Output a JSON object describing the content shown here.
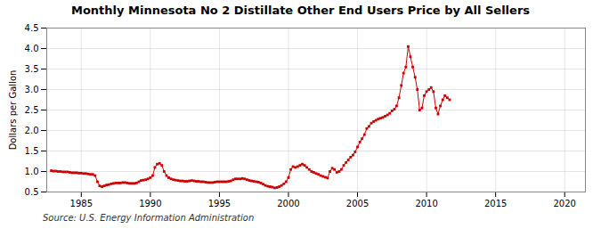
{
  "chart_data": {
    "type": "line",
    "title": "Monthly Minnesota No 2 Distillate Other End Users Price by All Sellers",
    "ylabel": "Dollars per Gallon",
    "caption": "Source: U.S. Energy Information Administration",
    "color": "#cc0000",
    "marker": "square",
    "line_style": "solid",
    "grid": true,
    "xlim": [
      1982.5,
      2021.5
    ],
    "ylim": [
      0.5,
      4.5
    ],
    "xticks": [
      1985,
      1990,
      1995,
      2000,
      2005,
      2010,
      2015,
      2020
    ],
    "yticks": [
      0.5,
      {
        "value": 1.0,
        "label": "1.0"
      },
      1.5,
      {
        "value": 2.0,
        "label": "2.0"
      },
      2.5,
      {
        "value": 3.0,
        "label": "3.0"
      },
      3.5,
      {
        "value": 4.0,
        "label": "4.0"
      },
      4.5
    ],
    "x": [
      1982.83,
      1983.0,
      1983.17,
      1983.33,
      1983.5,
      1983.67,
      1983.83,
      1984.0,
      1984.17,
      1984.33,
      1984.5,
      1984.67,
      1984.83,
      1985.0,
      1985.17,
      1985.33,
      1985.5,
      1985.67,
      1985.83,
      1986.0,
      1986.17,
      1986.33,
      1986.5,
      1986.67,
      1986.83,
      1987.0,
      1987.17,
      1987.33,
      1987.5,
      1987.67,
      1987.83,
      1988.0,
      1988.17,
      1988.33,
      1988.5,
      1988.67,
      1988.83,
      1989.0,
      1989.17,
      1989.33,
      1989.5,
      1989.67,
      1989.83,
      1990.0,
      1990.17,
      1990.33,
      1990.5,
      1990.67,
      1990.83,
      1991.0,
      1991.17,
      1991.33,
      1991.5,
      1991.67,
      1991.83,
      1992.0,
      1992.17,
      1992.33,
      1992.5,
      1992.67,
      1992.83,
      1993.0,
      1993.17,
      1993.33,
      1993.5,
      1993.67,
      1993.83,
      1994.0,
      1994.17,
      1994.33,
      1994.5,
      1994.67,
      1994.83,
      1995.0,
      1995.17,
      1995.33,
      1995.5,
      1995.67,
      1995.83,
      1996.0,
      1996.17,
      1996.33,
      1996.5,
      1996.67,
      1996.83,
      1997.0,
      1997.17,
      1997.33,
      1997.5,
      1997.67,
      1997.83,
      1998.0,
      1998.17,
      1998.33,
      1998.5,
      1998.67,
      1998.83,
      1999.0,
      1999.17,
      1999.33,
      1999.5,
      1999.67,
      1999.83,
      2000.0,
      2000.17,
      2000.33,
      2000.5,
      2000.67,
      2000.83,
      2001.0,
      2001.17,
      2001.33,
      2001.5,
      2001.67,
      2001.83,
      2002.0,
      2002.17,
      2002.33,
      2002.5,
      2002.67,
      2002.83,
      2003.0,
      2003.17,
      2003.33,
      2003.5,
      2003.67,
      2003.83,
      2004.0,
      2004.17,
      2004.33,
      2004.5,
      2004.67,
      2004.83,
      2005.0,
      2005.17,
      2005.33,
      2005.5,
      2005.67,
      2005.83,
      2006.0,
      2006.17,
      2006.33,
      2006.5,
      2006.67,
      2006.83,
      2007.0,
      2007.17,
      2007.33,
      2007.5,
      2007.67,
      2007.83,
      2008.0,
      2008.17,
      2008.33,
      2008.5,
      2008.67,
      2008.83,
      2009.0,
      2009.17,
      2009.33,
      2009.5,
      2009.67,
      2009.83,
      2010.0,
      2010.17,
      2010.33,
      2010.5,
      2010.67,
      2010.83,
      2011.0,
      2011.17,
      2011.33,
      2011.5,
      2011.67
    ],
    "values": [
      1.02,
      1.01,
      1.01,
      1.0,
      1.0,
      0.99,
      0.99,
      0.99,
      0.98,
      0.97,
      0.97,
      0.97,
      0.96,
      0.96,
      0.95,
      0.95,
      0.94,
      0.93,
      0.93,
      0.9,
      0.75,
      0.65,
      0.63,
      0.65,
      0.67,
      0.68,
      0.7,
      0.71,
      0.72,
      0.72,
      0.72,
      0.73,
      0.73,
      0.72,
      0.71,
      0.71,
      0.71,
      0.72,
      0.75,
      0.78,
      0.79,
      0.8,
      0.82,
      0.85,
      0.9,
      1.1,
      1.18,
      1.2,
      1.15,
      1.0,
      0.9,
      0.85,
      0.82,
      0.8,
      0.79,
      0.78,
      0.77,
      0.77,
      0.76,
      0.76,
      0.77,
      0.78,
      0.77,
      0.76,
      0.76,
      0.75,
      0.75,
      0.74,
      0.73,
      0.73,
      0.73,
      0.74,
      0.75,
      0.75,
      0.75,
      0.75,
      0.75,
      0.76,
      0.77,
      0.8,
      0.82,
      0.82,
      0.82,
      0.83,
      0.82,
      0.8,
      0.78,
      0.77,
      0.76,
      0.75,
      0.74,
      0.72,
      0.69,
      0.66,
      0.64,
      0.63,
      0.62,
      0.6,
      0.61,
      0.63,
      0.66,
      0.7,
      0.75,
      0.85,
      1.05,
      1.12,
      1.1,
      1.12,
      1.15,
      1.18,
      1.15,
      1.1,
      1.05,
      1.0,
      0.98,
      0.95,
      0.93,
      0.9,
      0.88,
      0.86,
      0.84,
      1.0,
      1.08,
      1.05,
      0.98,
      1.0,
      1.05,
      1.15,
      1.22,
      1.28,
      1.35,
      1.4,
      1.48,
      1.6,
      1.72,
      1.8,
      1.9,
      2.05,
      2.1,
      2.18,
      2.22,
      2.25,
      2.28,
      2.3,
      2.32,
      2.35,
      2.38,
      2.42,
      2.48,
      2.52,
      2.6,
      2.8,
      3.1,
      3.4,
      3.55,
      4.05,
      3.8,
      3.55,
      3.3,
      3.0,
      2.5,
      2.55,
      2.85,
      2.95,
      3.0,
      3.05,
      2.95,
      2.55,
      2.4,
      2.6,
      2.75,
      2.85,
      2.8,
      2.75
    ]
  }
}
